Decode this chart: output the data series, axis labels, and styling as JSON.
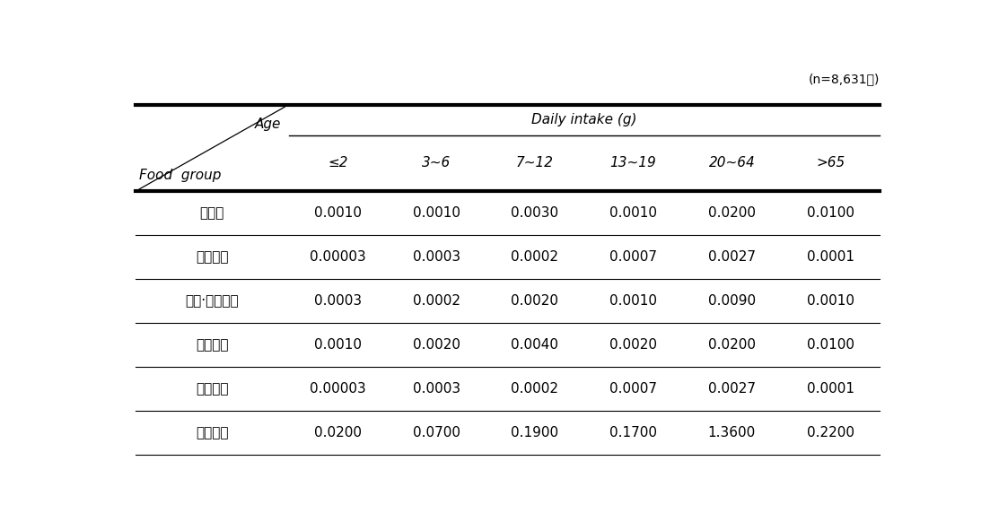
{
  "caption": "(n=8,631명)",
  "header_span": "Daily intake (g)",
  "col_header_label1": "Food  group",
  "col_header_label2": "Age",
  "age_columns": [
    "≤2",
    "3~6",
    "7~12",
    "13~19",
    "20~64",
    ">65"
  ],
  "rows": [
    {
      "food": "천일염",
      "values": [
        "0.0010",
        "0.0010",
        "0.0030",
        "0.0010",
        "0.0200",
        "0.0100"
      ]
    },
    {
      "food": "재제소금",
      "values": [
        "0.00003",
        "0.0003",
        "0.0002",
        "0.0007",
        "0.0027",
        "0.0001"
      ]
    },
    {
      "food": "태움·용융소금",
      "values": [
        "0.0003",
        "0.0002",
        "0.0020",
        "0.0010",
        "0.0090",
        "0.0010"
      ]
    },
    {
      "food": "정제소금",
      "values": [
        "0.0010",
        "0.0020",
        "0.0040",
        "0.0020",
        "0.0200",
        "0.0100"
      ]
    },
    {
      "food": "기타소금",
      "values": [
        "0.00003",
        "0.0003",
        "0.0002",
        "0.0007",
        "0.0027",
        "0.0001"
      ]
    },
    {
      "food": "가공소금",
      "values": [
        "0.0200",
        "0.0700",
        "0.1900",
        "0.1700",
        "1.3600",
        "0.2200"
      ]
    }
  ],
  "background_color": "#ffffff",
  "text_color": "#000000",
  "line_color": "#000000",
  "font_size": 11,
  "caption_font_size": 10
}
